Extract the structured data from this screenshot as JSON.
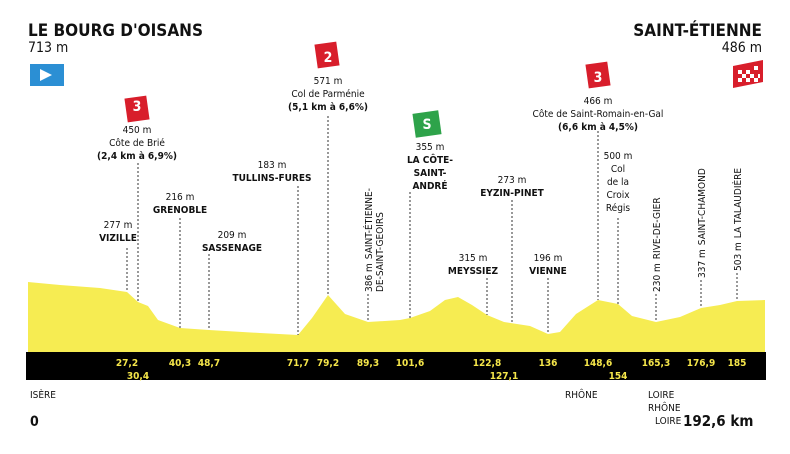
{
  "start": {
    "name": "LE BOURG D'OISANS",
    "altitude": "713 m",
    "distance": "0"
  },
  "finish": {
    "name": "SAINT-ÉTIENNE",
    "altitude": "486 m",
    "distance": "192,6 km"
  },
  "points": [
    {
      "altitude": "277 m",
      "name": "VIZILLE"
    },
    {
      "altitude": "216 m",
      "name": "GRENOBLE"
    },
    {
      "altitude": "209 m",
      "name": "SASSENAGE"
    },
    {
      "altitude": "183 m",
      "name": "TULLINS-FURES"
    },
    {
      "altitude": "386 m",
      "name": "SAINT-ÉTIENNE-",
      "name2": "DE-SAINT-GEOIRS"
    },
    {
      "altitude": "273 m",
      "name": "EYZIN-PINET"
    },
    {
      "altitude": "315 m",
      "name": "MEYSSIEZ"
    },
    {
      "altitude": "196 m",
      "name": "VIENNE"
    },
    {
      "altitude": "230 m",
      "name": "RIVE-DE-GIER"
    },
    {
      "altitude": "337 m",
      "name": "SAINT-CHAMOND"
    },
    {
      "altitude": "503 m",
      "name": "LA TALAUDIÈRE"
    }
  ],
  "climbs": [
    {
      "category": "3",
      "altitude": "450 m",
      "name": "Côte de Brié",
      "gradient": "(2,4 km à 6,9%)"
    },
    {
      "category": "2",
      "altitude": "571 m",
      "name": "Col de Parménie",
      "gradient": "(5,1 km à 6,6%)"
    },
    {
      "category": "3",
      "altitude": "466 m",
      "name": "Côte de Saint-Romain-en-Gal",
      "gradient": "(6,6 km à 4,5%)"
    },
    {
      "altitude": "500 m",
      "name": [
        "Col",
        "de la",
        "Croix",
        "Régis"
      ]
    }
  ],
  "sprint": {
    "badge": "S",
    "altitude": "355 m",
    "name": [
      "LA CÔTE-",
      "SAINT-",
      "ANDRÉ"
    ]
  },
  "km_markers": [
    "27,2",
    "30,4",
    "40,3",
    "48,7",
    "71,7",
    "79,2",
    "89,3",
    "101,6",
    "122,8",
    "127,1",
    "136",
    "148,6",
    "154",
    "165,3",
    "176,9",
    "185"
  ],
  "regions": [
    "ISÈRE",
    "RHÔNE",
    "LOIRE",
    "RHÔNE",
    "LOIRE"
  ]
}
